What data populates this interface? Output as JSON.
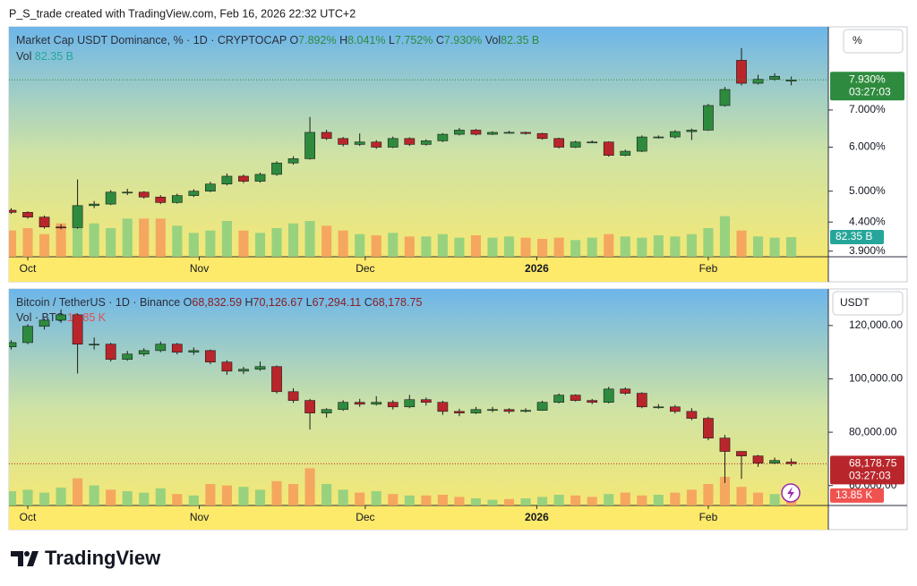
{
  "header": "P_S_trade created with TradingView.com, Feb 16, 2026 22:32 UTC+2",
  "brand": "TradingView",
  "chart_data": [
    {
      "type": "candlestick",
      "title": "Market Cap USDT Dominance, % · 1D · CRYPTOCAP",
      "ohlc_keys": [
        "O",
        "H",
        "L",
        "C"
      ],
      "ohlc_texts": [
        "7.892%",
        "8.041%",
        "7.752%",
        "7.930%"
      ],
      "volume_title": "Vol",
      "volume_text": "82.35 B",
      "scale_button": "%",
      "last_price_label": "7.930%",
      "countdown": "03:27:03",
      "log": true,
      "grid": false,
      "up_color": "#2e8b3e",
      "down_color": "#b8262b",
      "volume_up_color": "#8fcf7e",
      "volume_down_color": "#f5a05c",
      "xlim": [
        -3.4,
        144.7
      ],
      "xticks": [
        {
          "value": 0,
          "label": "Oct"
        },
        {
          "value": 31,
          "label": "Nov"
        },
        {
          "value": 61,
          "label": "Dec"
        },
        {
          "value": 92,
          "label": "2026"
        },
        {
          "value": 123,
          "label": "Feb"
        }
      ],
      "ylim": [
        3.81,
        9.88
      ],
      "yticks": [
        {
          "value": 3.9,
          "label": "3.900%"
        },
        {
          "value": 4.4,
          "label": "4.400%"
        },
        {
          "value": 5,
          "label": "5.000%"
        },
        {
          "value": 6,
          "label": "6.000%"
        },
        {
          "value": 7,
          "label": "7.000%"
        }
      ],
      "vlim": [
        0,
        300
      ],
      "x": [
        -3,
        0,
        3,
        6,
        9,
        12,
        15,
        18,
        21,
        24,
        27,
        30,
        33,
        36,
        39,
        42,
        45,
        48,
        51,
        54,
        57,
        60,
        63,
        66,
        69,
        72,
        75,
        78,
        81,
        84,
        87,
        90,
        93,
        96,
        99,
        102,
        105,
        108,
        111,
        114,
        117,
        120,
        123,
        126,
        129,
        132,
        135,
        138
      ],
      "open": [
        4.62,
        4.58,
        4.49,
        4.31,
        4.3,
        4.71,
        4.74,
        4.98,
        4.98,
        4.88,
        4.77,
        4.91,
        5.0,
        5.15,
        5.32,
        5.21,
        5.36,
        5.62,
        5.72,
        6.38,
        6.22,
        6.07,
        6.13,
        6.0,
        6.22,
        6.07,
        6.16,
        6.33,
        6.44,
        6.33,
        6.38,
        6.38,
        6.35,
        6.22,
        6.0,
        6.13,
        6.13,
        5.8,
        5.9,
        6.26,
        6.26,
        6.4,
        6.44,
        7.13,
        8.6,
        7.82,
        7.95,
        7.892
      ],
      "high": [
        4.66,
        4.6,
        4.52,
        4.36,
        5.25,
        4.8,
        5.02,
        5.05,
        5.0,
        4.92,
        4.95,
        5.04,
        5.2,
        5.38,
        5.36,
        5.4,
        5.66,
        5.78,
        6.8,
        6.45,
        6.26,
        6.35,
        6.18,
        6.27,
        6.25,
        6.2,
        6.36,
        6.5,
        6.47,
        6.41,
        6.42,
        6.4,
        6.37,
        6.24,
        6.16,
        6.17,
        6.15,
        5.94,
        6.3,
        6.3,
        6.44,
        6.48,
        7.18,
        7.7,
        9.05,
        8.1,
        8.15,
        8.041
      ],
      "low": [
        4.55,
        4.46,
        4.28,
        4.27,
        4.28,
        4.66,
        4.72,
        4.92,
        4.85,
        4.74,
        4.75,
        4.88,
        4.98,
        5.12,
        5.17,
        5.18,
        5.33,
        5.58,
        5.7,
        6.18,
        6.02,
        6.03,
        5.96,
        5.98,
        6.03,
        6.04,
        6.13,
        6.3,
        6.3,
        6.31,
        6.35,
        6.32,
        6.19,
        5.97,
        5.98,
        6.1,
        5.77,
        5.78,
        5.88,
        6.22,
        6.22,
        6.18,
        6.42,
        7.1,
        7.75,
        7.78,
        7.9,
        7.752
      ],
      "close": [
        4.58,
        4.49,
        4.31,
        4.3,
        4.71,
        4.74,
        4.98,
        4.98,
        4.88,
        4.77,
        4.91,
        5.0,
        5.15,
        5.32,
        5.21,
        5.36,
        5.62,
        5.72,
        6.38,
        6.22,
        6.07,
        6.13,
        6.0,
        6.22,
        6.07,
        6.16,
        6.33,
        6.44,
        6.33,
        6.38,
        6.38,
        6.35,
        6.22,
        6.0,
        6.13,
        6.13,
        5.8,
        5.9,
        6.26,
        6.26,
        6.4,
        6.44,
        7.13,
        7.62,
        7.82,
        7.95,
        8.05,
        7.93
      ],
      "volume": [
        110,
        120,
        95,
        140,
        160,
        140,
        120,
        160,
        160,
        160,
        130,
        100,
        110,
        150,
        110,
        100,
        120,
        140,
        150,
        130,
        110,
        95,
        90,
        100,
        85,
        85,
        95,
        80,
        90,
        80,
        85,
        80,
        75,
        80,
        70,
        80,
        95,
        85,
        80,
        90,
        85,
        95,
        120,
        170,
        110,
        85,
        80,
        82.35
      ]
    },
    {
      "type": "candlestick",
      "title": "Bitcoin / TetherUS · 1D · Binance",
      "ohlc_keys": [
        "O",
        "H",
        "L",
        "C"
      ],
      "ohlc_texts": [
        "68,832.59",
        "70,126.67",
        "67,294.11",
        "68,178.75"
      ],
      "volume_title": "Vol · BTC",
      "volume_text": "13.85 K",
      "scale_button": "USDT",
      "last_price_label": "68,178.75",
      "countdown": "03:27:03",
      "log": false,
      "grid": false,
      "up_color": "#2e8b3e",
      "down_color": "#b8262b",
      "volume_up_color": "#8fcf7e",
      "volume_down_color": "#f5a05c",
      "xlim": [
        -3.4,
        144.7
      ],
      "xticks": [
        {
          "value": 0,
          "label": "Oct"
        },
        {
          "value": 31,
          "label": "Nov"
        },
        {
          "value": 61,
          "label": "Dec"
        },
        {
          "value": 92,
          "label": "2026"
        },
        {
          "value": 123,
          "label": "Feb"
        }
      ],
      "ylim": [
        52530,
        133700
      ],
      "yticks": [
        {
          "value": 60000,
          "label": "60,000.00"
        },
        {
          "value": 80000,
          "label": "80,000.00"
        },
        {
          "value": 100000,
          "label": "100,000.00"
        },
        {
          "value": 120000,
          "label": "120,000.00"
        }
      ],
      "vlim": [
        0,
        100
      ],
      "x": [
        -3,
        0,
        3,
        6,
        9,
        12,
        15,
        18,
        21,
        24,
        27,
        30,
        33,
        36,
        39,
        42,
        45,
        48,
        51,
        54,
        57,
        60,
        63,
        66,
        69,
        72,
        75,
        78,
        81,
        84,
        87,
        90,
        93,
        96,
        99,
        102,
        105,
        108,
        111,
        114,
        117,
        120,
        123,
        126,
        129,
        132,
        135,
        138
      ],
      "open": [
        112000,
        113600,
        119700,
        122000,
        124000,
        113000,
        113000,
        107300,
        109300,
        110600,
        113000,
        110000,
        110600,
        106300,
        102900,
        103600,
        104600,
        95200,
        91900,
        87200,
        88500,
        91200,
        90500,
        91200,
        89500,
        92200,
        91200,
        87800,
        87200,
        88500,
        88500,
        87800,
        88200,
        91200,
        93900,
        91900,
        91200,
        96200,
        94600,
        89500,
        89500,
        87800,
        85200,
        77800,
        72800,
        71100,
        68400,
        68832.59
      ],
      "high": [
        114500,
        120500,
        122500,
        126000,
        124500,
        115500,
        113500,
        110500,
        111500,
        114000,
        113500,
        111800,
        111000,
        107000,
        104500,
        106500,
        105000,
        96500,
        92500,
        89000,
        92000,
        92500,
        93500,
        92000,
        94000,
        93000,
        91800,
        88800,
        89500,
        89500,
        89000,
        89000,
        91800,
        94500,
        94200,
        92500,
        97000,
        96800,
        95000,
        90500,
        90200,
        89000,
        85800,
        79000,
        72900,
        71500,
        70500,
        70126.67
      ],
      "low": [
        111000,
        113000,
        118500,
        121000,
        102000,
        111000,
        106500,
        106800,
        108500,
        110000,
        109200,
        109000,
        105500,
        101500,
        101800,
        103000,
        94500,
        91000,
        81000,
        85500,
        88000,
        89500,
        90000,
        88500,
        89000,
        90000,
        86500,
        86000,
        86800,
        87500,
        87000,
        87400,
        88000,
        90800,
        91500,
        90500,
        90800,
        94000,
        89000,
        88800,
        87000,
        84500,
        77000,
        61000,
        62500,
        67000,
        68000,
        67294.11
      ],
      "close": [
        113600,
        119700,
        122000,
        124000,
        113000,
        113000,
        107300,
        109300,
        110600,
        113000,
        110000,
        110600,
        106300,
        102900,
        103600,
        104600,
        95200,
        91900,
        87200,
        88500,
        91200,
        90500,
        91200,
        89500,
        92200,
        91200,
        87800,
        87200,
        88500,
        88500,
        87800,
        88200,
        91200,
        93900,
        91900,
        91200,
        96200,
        94600,
        89500,
        89500,
        87800,
        85200,
        77800,
        72800,
        71100,
        68400,
        69400,
        68178.75
      ],
      "volume": [
        20,
        22,
        18,
        25,
        38,
        28,
        22,
        20,
        18,
        24,
        16,
        14,
        30,
        28,
        26,
        22,
        34,
        30,
        52,
        30,
        22,
        18,
        20,
        16,
        14,
        14,
        15,
        12,
        10,
        8,
        9,
        10,
        12,
        15,
        14,
        12,
        16,
        18,
        14,
        15,
        18,
        22,
        30,
        40,
        26,
        18,
        16,
        13.85
      ]
    }
  ]
}
